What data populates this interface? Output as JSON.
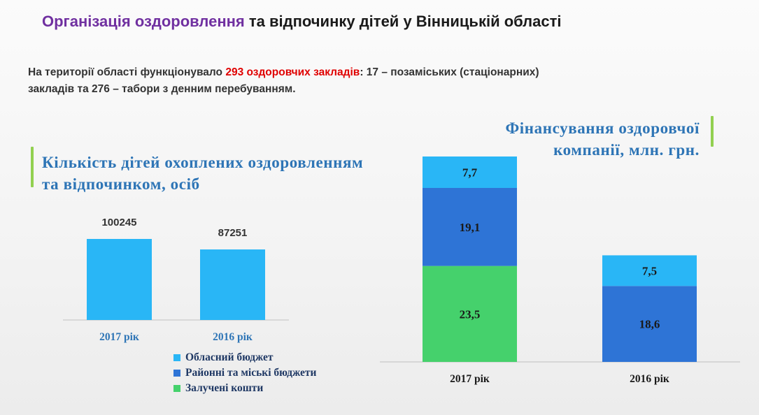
{
  "page": {
    "title_part1": "Організація оздоровлення",
    "title_part2": "та відпочинку дітей  у Вінницькій області",
    "intro_before": "На території області функціонувало ",
    "intro_highlight": "293 оздоровчих закладів",
    "intro_after": ": 17 – позаміських (стаціонарних) закладів та 276 – табори з денним перебуванням."
  },
  "colors": {
    "accent_green": "#92d050",
    "title_purple": "#7030a0",
    "title_blue": "#2e75b6",
    "highlight_red": "#e00000",
    "oblast": "#29b6f6",
    "district": "#2e74d6",
    "attracted": "#45d16c"
  },
  "legend": {
    "items": [
      {
        "label": "Обласний  бюджет",
        "color": "#29b6f6"
      },
      {
        "label": "Районні та міські  бюджети",
        "color": "#2e74d6"
      },
      {
        "label": "Залучені кошти",
        "color": "#45d16c"
      }
    ]
  },
  "chart_data": [
    {
      "type": "bar",
      "title": "Кількість  дітей охоплених оздоровленням та відпочинком, осіб",
      "categories": [
        "2017 рік",
        "2016 рік"
      ],
      "values": [
        100245,
        87251
      ],
      "value_labels": [
        "100245",
        "87251"
      ],
      "color": "#29b6f6",
      "grid": false
    },
    {
      "type": "bar",
      "stacked": true,
      "title": "Фінансування  оздоровчої компанії, млн. грн.",
      "categories": [
        "2017 рік",
        "2016 рік"
      ],
      "series": [
        {
          "name": "Залучені кошти",
          "values": [
            23.5,
            0
          ],
          "labels": [
            "23,5",
            ""
          ],
          "color": "#45d16c"
        },
        {
          "name": "Районні та міські  бюджети",
          "values": [
            19.1,
            18.6
          ],
          "labels": [
            "19,1",
            "18,6"
          ],
          "color": "#2e74d6"
        },
        {
          "name": "Обласний  бюджет",
          "values": [
            7.7,
            7.5
          ],
          "labels": [
            "7,7",
            "7,5"
          ],
          "color": "#29b6f6"
        }
      ],
      "grid": false
    }
  ]
}
